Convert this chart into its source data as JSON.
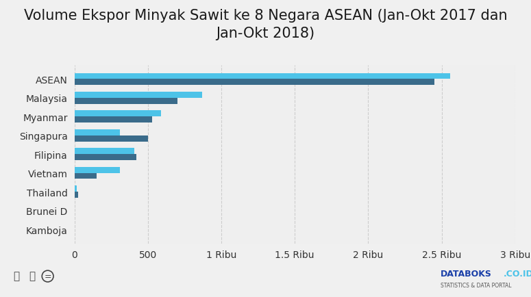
{
  "title": "Volume Ekspor Minyak Sawit ke 8 Negara ASEAN (Jan-Okt 2017 dan\nJan-Okt 2018)",
  "categories": [
    "ASEAN",
    "Malaysia",
    "Myanmar",
    "Singapura",
    "Filipina",
    "Vietnam",
    "Thailand",
    "Brunei D",
    "Kamboja"
  ],
  "values_2017": [
    2450,
    700,
    530,
    500,
    420,
    150,
    25,
    0,
    0
  ],
  "values_2018": [
    2560,
    870,
    590,
    310,
    410,
    310,
    15,
    0,
    0
  ],
  "color_2017": "#3a6b8a",
  "color_2018": "#4dc3e8",
  "xlim": [
    0,
    3000
  ],
  "xticks": [
    0,
    500,
    1000,
    1500,
    2000,
    2500,
    3000
  ],
  "xticklabels": [
    "0",
    "500",
    "1 Ribu",
    "1.5 Ribu",
    "2 Ribu",
    "2.5 Ribu",
    "3 Ribu"
  ],
  "background_color": "#f0f0f0",
  "plot_background": "#efefef",
  "title_fontsize": 15,
  "tick_fontsize": 10,
  "bar_height": 0.32,
  "grid_color": "#cccccc"
}
